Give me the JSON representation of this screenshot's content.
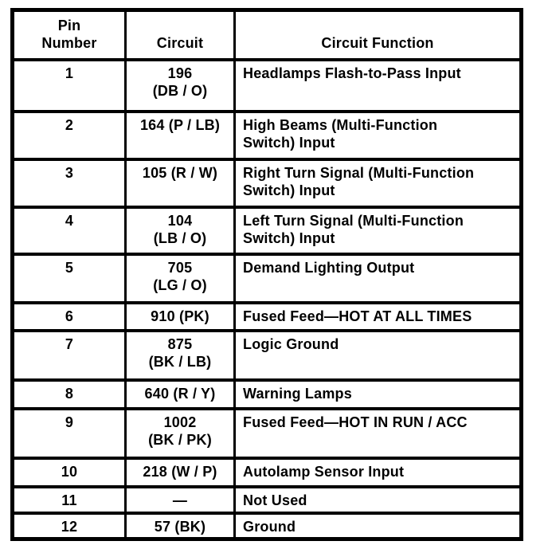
{
  "table": {
    "headers": [
      "Pin\nNumber",
      "Circuit",
      "Circuit Function"
    ],
    "rows": [
      {
        "pin": "1",
        "circuit": "196\n(DB / O)",
        "function": "Headlamps Flash-to-Pass Input"
      },
      {
        "pin": "2",
        "circuit": "164 (P / LB)",
        "function": "High Beams (Multi-Function\nSwitch) Input"
      },
      {
        "pin": "3",
        "circuit": "105 (R / W)",
        "function": "Right Turn Signal (Multi-Function\nSwitch) Input"
      },
      {
        "pin": "4",
        "circuit": "104\n(LB / O)",
        "function": "Left Turn Signal (Multi-Function\nSwitch) Input"
      },
      {
        "pin": "5",
        "circuit": "705\n(LG / O)",
        "function": "Demand Lighting Output"
      },
      {
        "pin": "6",
        "circuit": "910 (PK)",
        "function": "Fused Feed—HOT AT ALL TIMES"
      },
      {
        "pin": "7",
        "circuit": "875\n(BK / LB)",
        "function": "Logic Ground"
      },
      {
        "pin": "8",
        "circuit": "640 (R / Y)",
        "function": "Warning Lamps"
      },
      {
        "pin": "9",
        "circuit": "1002\n(BK / PK)",
        "function": "Fused Feed—HOT IN RUN / ACC"
      },
      {
        "pin": "10",
        "circuit": "218 (W / P)",
        "function": "Autolamp Sensor Input"
      },
      {
        "pin": "11",
        "circuit": "—",
        "function": "Not Used"
      },
      {
        "pin": "12",
        "circuit": "57 (BK)",
        "function": "Ground"
      }
    ],
    "colors": {
      "ink": "#000000",
      "paper": "#ffffff"
    }
  }
}
